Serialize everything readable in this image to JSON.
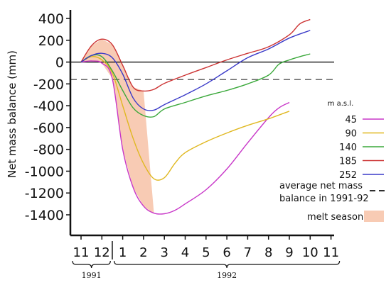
{
  "chart_data": {
    "type": "line",
    "ylabel": "Net mass balance (mm)",
    "ylim": [
      -1500,
      450
    ],
    "yticks": [
      400,
      200,
      0,
      -200,
      -400,
      -600,
      -800,
      -1000,
      -1200,
      -1400
    ],
    "x_ticks": [
      "11",
      "12",
      "1",
      "2",
      "3",
      "4",
      "5",
      "6",
      "7",
      "8",
      "9",
      "10",
      "11"
    ],
    "x_start_index": 0,
    "years": [
      {
        "label": "1991",
        "from": 0,
        "to": 1
      },
      {
        "label": "1992",
        "from": 2,
        "to": 12
      }
    ],
    "legend_title": "m a.s.l.",
    "series": [
      {
        "name": "45",
        "color": "#c837c8",
        "points": [
          [
            0,
            0
          ],
          [
            0.5,
            10
          ],
          [
            1,
            -10
          ],
          [
            1.5,
            -150
          ],
          [
            2,
            -800
          ],
          [
            2.5,
            -1150
          ],
          [
            3,
            -1320
          ],
          [
            3.5,
            -1385
          ],
          [
            4,
            -1390
          ],
          [
            4.5,
            -1360
          ],
          [
            5,
            -1300
          ],
          [
            6,
            -1170
          ],
          [
            7,
            -980
          ],
          [
            8,
            -740
          ],
          [
            9,
            -510
          ],
          [
            9.5,
            -420
          ],
          [
            10,
            -370
          ]
        ]
      },
      {
        "name": "90",
        "color": "#e0b820",
        "points": [
          [
            0,
            0
          ],
          [
            0.5,
            50
          ],
          [
            1,
            20
          ],
          [
            1.5,
            -100
          ],
          [
            2,
            -400
          ],
          [
            2.5,
            -700
          ],
          [
            3,
            -930
          ],
          [
            3.5,
            -1070
          ],
          [
            4,
            -1060
          ],
          [
            4.5,
            -930
          ],
          [
            5,
            -830
          ],
          [
            6,
            -730
          ],
          [
            7,
            -650
          ],
          [
            8,
            -580
          ],
          [
            9,
            -520
          ],
          [
            10,
            -450
          ]
        ]
      },
      {
        "name": "140",
        "color": "#3aa83a",
        "points": [
          [
            0,
            0
          ],
          [
            0.5,
            60
          ],
          [
            1,
            50
          ],
          [
            1.5,
            -80
          ],
          [
            2,
            -260
          ],
          [
            2.5,
            -420
          ],
          [
            3,
            -490
          ],
          [
            3.5,
            -500
          ],
          [
            4,
            -430
          ],
          [
            5,
            -370
          ],
          [
            6,
            -310
          ],
          [
            7,
            -260
          ],
          [
            8,
            -200
          ],
          [
            9,
            -120
          ],
          [
            9.5,
            -20
          ],
          [
            10,
            20
          ],
          [
            10.5,
            50
          ],
          [
            11,
            75
          ]
        ]
      },
      {
        "name": "185",
        "color": "#cc3333",
        "points": [
          [
            0,
            0
          ],
          [
            0.5,
            150
          ],
          [
            1,
            210
          ],
          [
            1.5,
            160
          ],
          [
            2,
            -30
          ],
          [
            2.5,
            -230
          ],
          [
            3,
            -265
          ],
          [
            3.5,
            -250
          ],
          [
            4,
            -195
          ],
          [
            5,
            -120
          ],
          [
            6,
            -50
          ],
          [
            7,
            20
          ],
          [
            8,
            80
          ],
          [
            9,
            140
          ],
          [
            10,
            250
          ],
          [
            10.5,
            350
          ],
          [
            11,
            390
          ]
        ]
      },
      {
        "name": "252",
        "color": "#3a3ac8",
        "points": [
          [
            0,
            0
          ],
          [
            0.5,
            60
          ],
          [
            1,
            80
          ],
          [
            1.5,
            40
          ],
          [
            2,
            -110
          ],
          [
            2.5,
            -330
          ],
          [
            3,
            -430
          ],
          [
            3.5,
            -440
          ],
          [
            4,
            -390
          ],
          [
            5,
            -300
          ],
          [
            6,
            -200
          ],
          [
            7,
            -80
          ],
          [
            8,
            40
          ],
          [
            9,
            120
          ],
          [
            10,
            220
          ],
          [
            11,
            290
          ]
        ]
      }
    ],
    "average_line": {
      "value": -160,
      "label_lines": [
        "average net mass",
        "balance in 1991-92"
      ],
      "color": "#555555"
    },
    "melt_season": {
      "label": "melt season",
      "color": "#f8cbb4",
      "polygon": [
        [
          0,
          0
        ],
        [
          0.5,
          150
        ],
        [
          1,
          210
        ],
        [
          1.5,
          160
        ],
        [
          2,
          -30
        ],
        [
          2.5,
          -230
        ],
        [
          3,
          -265
        ],
        [
          3.5,
          -1390
        ],
        [
          3,
          -1320
        ],
        [
          2.5,
          -1150
        ],
        [
          2,
          -800
        ],
        [
          1.5,
          -150
        ],
        [
          1,
          -10
        ],
        [
          0.5,
          10
        ]
      ]
    }
  }
}
